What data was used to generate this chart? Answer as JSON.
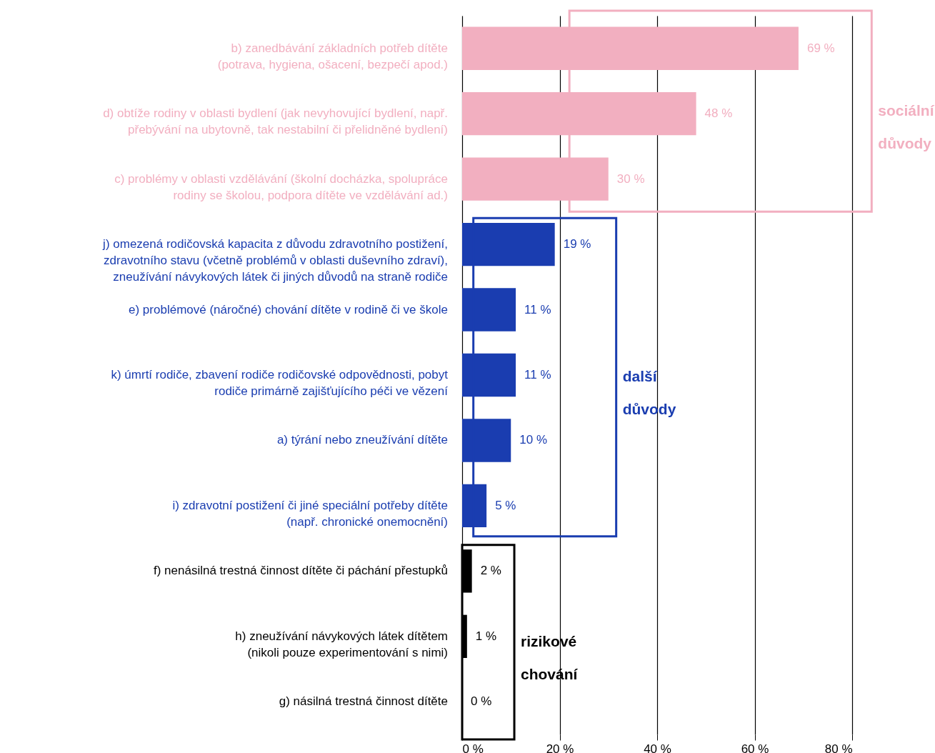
{
  "chart_data": {
    "type": "bar",
    "orientation": "horizontal",
    "categories": [
      "b) zanedbávání základních potřeb dítěte\n(potrava, hygiena, ošacení, bezpečí apod.)",
      "d) obtíže rodiny v oblasti bydlení (jak nevyhovující bydlení, např.\npřebývání na ubytovně, tak nestabilní či přelidněné bydlení)",
      "c) problémy v oblasti vzdělávání (školní docházka, spolupráce\nrodiny se školou, podpora dítěte ve vzdělávání ad.)",
      "j) omezená rodičovská kapacita z důvodu zdravotního postižení,\nzdravotního stavu (včetně problémů v oblasti duševního zdraví),\nzneužívání návykových látek či jiných důvodů na straně rodiče",
      "e) problémové (náročné) chování dítěte v rodině či ve škole",
      "k) úmrtí rodiče, zbavení rodiče rodičovské odpovědnosti, pobyt\nrodiče primárně zajišťujícího péči ve vězení",
      "a) týrání nebo zneužívání dítěte",
      "i) zdravotní postižení či jiné speciální potřeby dítěte\n(např. chronické onemocnění)",
      "f) nenásilná trestná činnost dítěte či páchání přestupků",
      "h) zneužívání návykových látek dítětem\n(nikoli pouze experimentování s nimi)",
      "g) násilná trestná činnost dítěte"
    ],
    "values": [
      69,
      48,
      30,
      19,
      11,
      11,
      10,
      5,
      2,
      1,
      0
    ],
    "value_labels": [
      "69 %",
      "48 %",
      "30 %",
      "19 %",
      "11 %",
      "11 %",
      "10 %",
      "5 %",
      "2 %",
      "1 %",
      "0 %"
    ],
    "colors": [
      "#f2afc0",
      "#f2afc0",
      "#f2afc0",
      "#1a3db0",
      "#1a3db0",
      "#1a3db0",
      "#1a3db0",
      "#1a3db0",
      "#000000",
      "#000000",
      "#000000"
    ],
    "xlim": [
      0,
      80
    ],
    "xticks": [
      {
        "value": 0,
        "label": "0 %"
      },
      {
        "value": 20,
        "label": "20 %"
      },
      {
        "value": 40,
        "label": "40 %"
      },
      {
        "value": 60,
        "label": "60 %"
      },
      {
        "value": 80,
        "label": "80 %"
      }
    ],
    "grid": "x",
    "annotations": [
      "sociální\ndůvody",
      "další\ndůvody",
      "rizikové\nchování"
    ]
  }
}
